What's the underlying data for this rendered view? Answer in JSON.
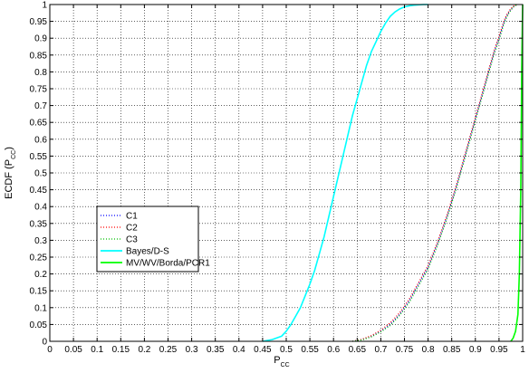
{
  "chart_data": {
    "type": "line",
    "title": "",
    "xlabel": "P",
    "xlabel_sub": "CC",
    "ylabel": "ECDF (P",
    "ylabel_sub": "CC",
    "ylabel_close": ")",
    "xlim": [
      0,
      1
    ],
    "ylim": [
      0,
      1
    ],
    "xticks": [
      "0",
      "0.05",
      "0.1",
      "0.15",
      "0.2",
      "0.25",
      "0.3",
      "0.35",
      "0.4",
      "0.45",
      "0.5",
      "0.55",
      "0.6",
      "0.65",
      "0.7",
      "0.75",
      "0.8",
      "0.85",
      "0.9",
      "0.95",
      "1"
    ],
    "yticks": [
      "0",
      "0.05",
      "0.1",
      "0.15",
      "0.2",
      "0.25",
      "0.3",
      "0.35",
      "0.4",
      "0.45",
      "0.5",
      "0.55",
      "0.6",
      "0.65",
      "0.7",
      "0.75",
      "0.8",
      "0.85",
      "0.9",
      "0.95",
      "1"
    ],
    "grid": true,
    "legend_position": "lower-left",
    "series": [
      {
        "name": "C1",
        "color": "#0000ff",
        "style": "dotted",
        "x": [
          0.64,
          0.66,
          0.68,
          0.7,
          0.72,
          0.74,
          0.76,
          0.78,
          0.8,
          0.82,
          0.84,
          0.86,
          0.88,
          0.9,
          0.92,
          0.94,
          0.95,
          0.96,
          0.965,
          0.97,
          0.975,
          0.98,
          0.985,
          0.99
        ],
        "y": [
          0.0,
          0.005,
          0.015,
          0.03,
          0.05,
          0.08,
          0.12,
          0.17,
          0.22,
          0.29,
          0.37,
          0.46,
          0.56,
          0.66,
          0.76,
          0.86,
          0.9,
          0.945,
          0.962,
          0.975,
          0.985,
          0.993,
          0.998,
          1.0
        ]
      },
      {
        "name": "C2",
        "color": "#ff0000",
        "style": "dotted",
        "x": [
          0.64,
          0.66,
          0.68,
          0.7,
          0.72,
          0.74,
          0.76,
          0.78,
          0.8,
          0.82,
          0.84,
          0.86,
          0.88,
          0.9,
          0.92,
          0.94,
          0.95,
          0.96,
          0.965,
          0.97,
          0.975,
          0.98,
          0.985,
          0.99
        ],
        "y": [
          0.0,
          0.006,
          0.017,
          0.033,
          0.055,
          0.085,
          0.125,
          0.175,
          0.225,
          0.295,
          0.375,
          0.465,
          0.565,
          0.665,
          0.765,
          0.865,
          0.905,
          0.95,
          0.966,
          0.978,
          0.988,
          0.995,
          0.999,
          1.0
        ]
      },
      {
        "name": "C3",
        "color": "#00c000",
        "style": "dotted",
        "x": [
          0.64,
          0.66,
          0.68,
          0.7,
          0.72,
          0.74,
          0.76,
          0.78,
          0.8,
          0.82,
          0.84,
          0.86,
          0.88,
          0.9,
          0.92,
          0.94,
          0.95,
          0.96,
          0.965,
          0.97,
          0.975,
          0.98,
          0.985,
          0.99
        ],
        "y": [
          0.0,
          0.004,
          0.013,
          0.028,
          0.047,
          0.077,
          0.115,
          0.165,
          0.215,
          0.285,
          0.365,
          0.455,
          0.555,
          0.655,
          0.755,
          0.855,
          0.895,
          0.94,
          0.958,
          0.972,
          0.983,
          0.992,
          0.997,
          1.0
        ]
      },
      {
        "name": "Bayes/D-S",
        "color": "#00ffff",
        "style": "solid",
        "x": [
          0.45,
          0.47,
          0.49,
          0.5,
          0.51,
          0.52,
          0.53,
          0.54,
          0.55,
          0.56,
          0.57,
          0.58,
          0.59,
          0.6,
          0.61,
          0.62,
          0.63,
          0.64,
          0.65,
          0.66,
          0.67,
          0.68,
          0.69,
          0.7,
          0.71,
          0.72,
          0.73,
          0.74,
          0.75,
          0.76,
          0.77,
          0.78,
          0.79,
          0.8
        ],
        "y": [
          0.0,
          0.005,
          0.015,
          0.03,
          0.05,
          0.075,
          0.1,
          0.135,
          0.17,
          0.21,
          0.26,
          0.31,
          0.37,
          0.43,
          0.49,
          0.55,
          0.61,
          0.67,
          0.72,
          0.77,
          0.82,
          0.86,
          0.89,
          0.92,
          0.945,
          0.965,
          0.978,
          0.987,
          0.993,
          0.996,
          0.998,
          0.999,
          1.0,
          1.0
        ]
      },
      {
        "name": "MV/WV/Borda/PCR1",
        "color": "#00ff00",
        "style": "solid",
        "x": [
          0.975,
          0.98,
          0.985,
          0.99,
          0.993,
          0.996,
          0.998,
          1.0
        ],
        "y": [
          0.0,
          0.01,
          0.03,
          0.08,
          0.2,
          0.45,
          0.8,
          1.0
        ]
      }
    ]
  }
}
